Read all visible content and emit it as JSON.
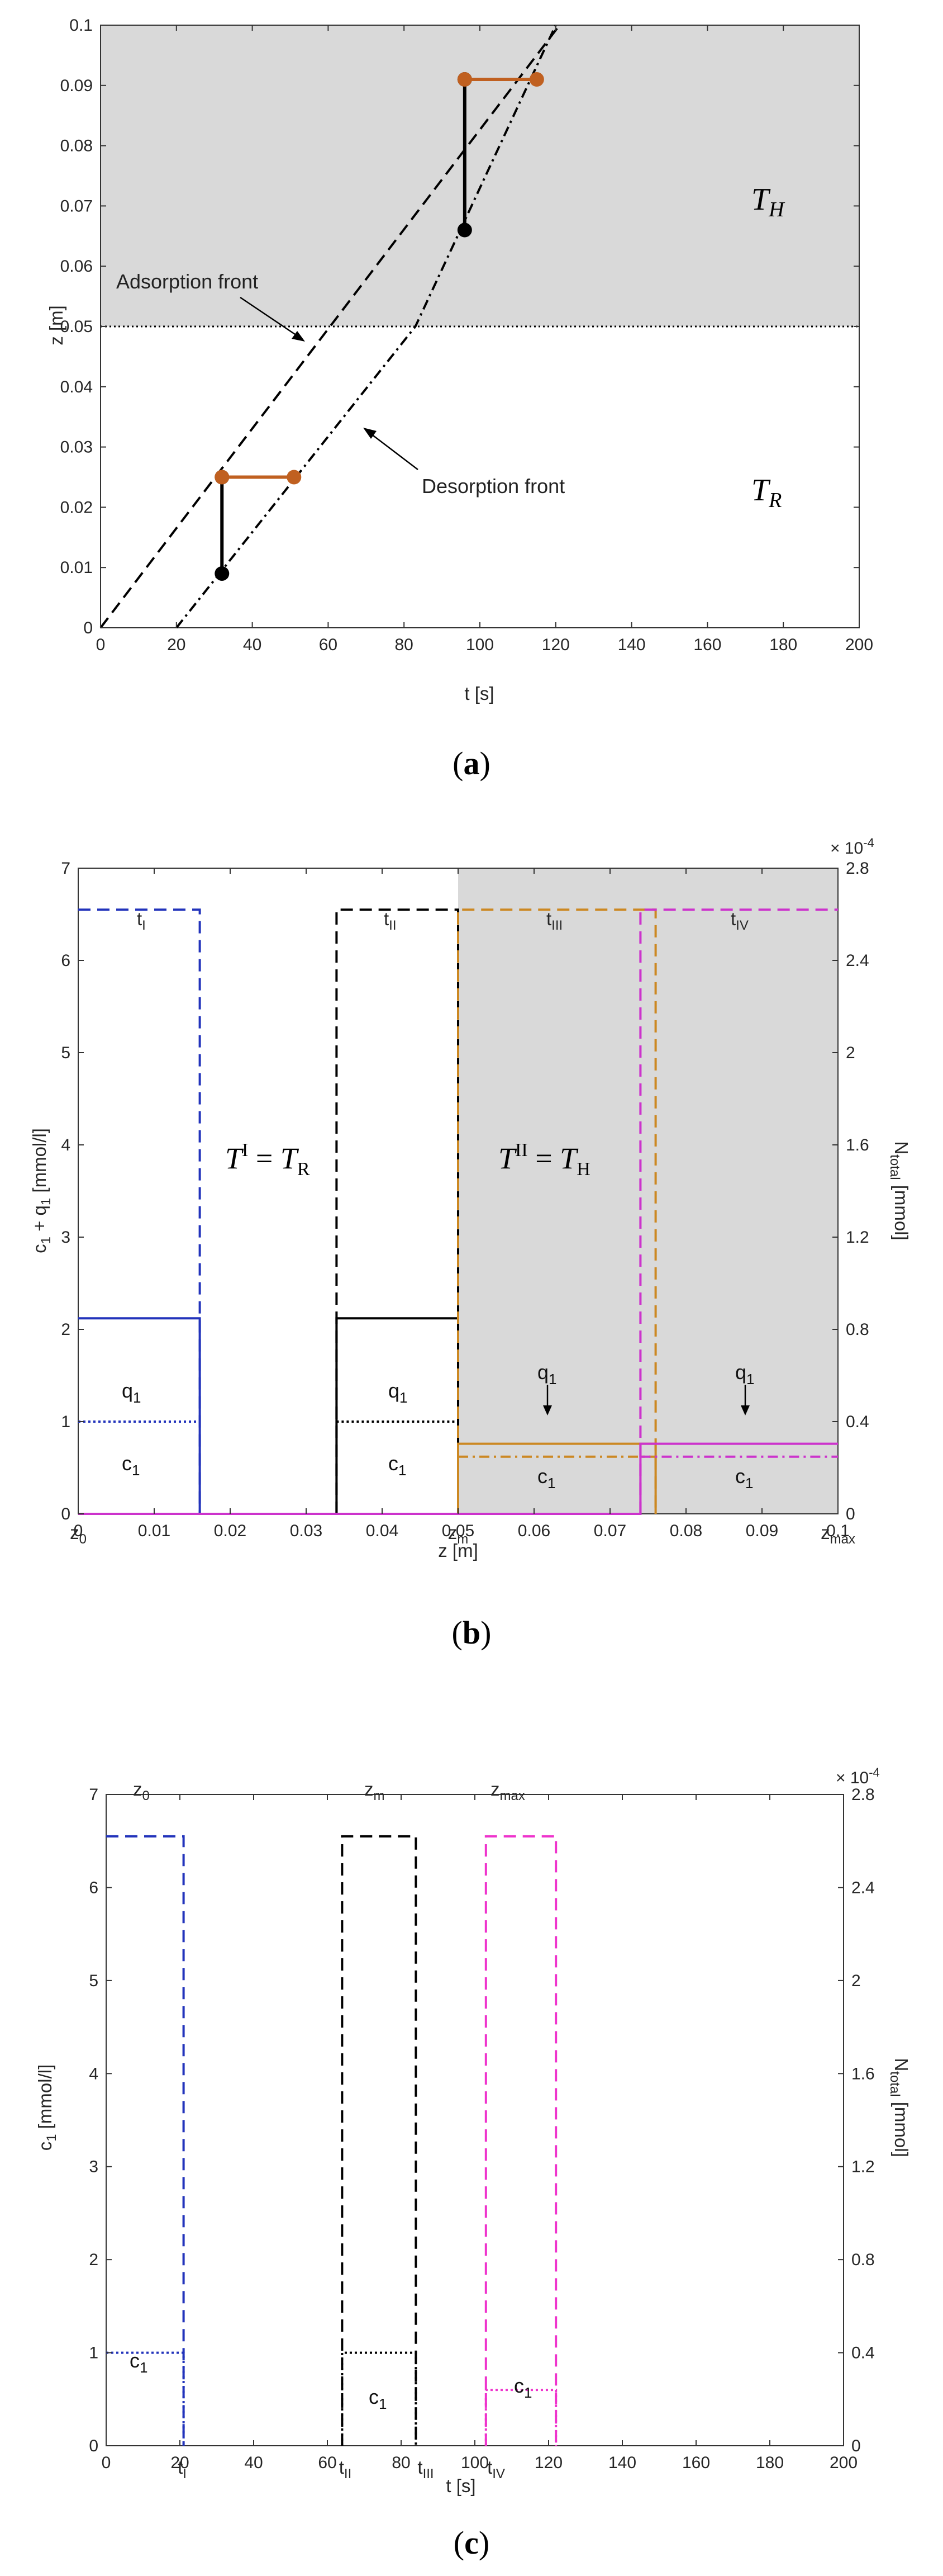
{
  "chart_data": [
    {
      "panel": "a",
      "caption": "(a)",
      "type": "line",
      "xlabel": "t [s]",
      "ylabel": "z [m]",
      "xlim": [
        0,
        200
      ],
      "ylim": [
        0,
        0.1
      ],
      "xticks": [
        "0",
        "20",
        "40",
        "60",
        "80",
        "100",
        "120",
        "140",
        "160",
        "180",
        "200"
      ],
      "yticks": [
        "0",
        "0.01",
        "0.02",
        "0.03",
        "0.04",
        "0.05",
        "0.06",
        "0.07",
        "0.08",
        "0.09",
        "0.1"
      ],
      "region_labels": {
        "top": "T_H",
        "bottom": "T_R"
      },
      "region_boundary_z": 0.05,
      "annotations": {
        "adsorption": "Adsorption front",
        "desorption": "Desorption front"
      },
      "series": [
        {
          "name": "Adsorption front",
          "style": "dashed",
          "x": [
            0,
            121
          ],
          "y": [
            0,
            0.1
          ]
        },
        {
          "name": "Desorption front",
          "style": "dashdot",
          "x": [
            20,
            83,
            120
          ],
          "y": [
            0,
            0.05,
            0.1
          ]
        }
      ],
      "markers": [
        {
          "color": "#000000",
          "x": [
            32,
            32
          ],
          "y": [
            0.009,
            0.025
          ]
        },
        {
          "color": "#c06020",
          "x": [
            32,
            51
          ],
          "y": [
            0.025,
            0.025
          ]
        },
        {
          "color": "#000000",
          "x": [
            96,
            96
          ],
          "y": [
            0.066,
            0.091
          ]
        },
        {
          "color": "#c06020",
          "x": [
            96,
            115
          ],
          "y": [
            0.091,
            0.091
          ]
        }
      ]
    },
    {
      "panel": "b",
      "caption": "(b)",
      "type": "line",
      "xlabel": "z [m]",
      "ylabel": "c_1 + q_1 [mmol/l]",
      "y2label": "N_total [mmol]",
      "y2exp": "× 10^-4",
      "xlim": [
        0,
        0.1
      ],
      "ylim": [
        0,
        7
      ],
      "y2lim": [
        0,
        2.8
      ],
      "xticks": [
        "0",
        "0.01",
        "0.02",
        "0.03",
        "0.04",
        "0.05",
        "0.06",
        "0.07",
        "0.08",
        "0.09",
        "0.1"
      ],
      "yticks": [
        "0",
        "1",
        "2",
        "3",
        "4",
        "5",
        "6",
        "7"
      ],
      "y2ticks": [
        "0",
        "0.4",
        "0.8",
        "1.2",
        "1.6",
        "2",
        "2.4",
        "2.8"
      ],
      "under_x": {
        "z0": "z_0",
        "zm": "z_m",
        "zmax": "z_max"
      },
      "temps": {
        "left": "T^I = T_R",
        "right": "T^II = T_H"
      },
      "time_labels": [
        "t_I",
        "t_II",
        "t_III",
        "t_IV"
      ],
      "curve_labels": {
        "q": "q_1",
        "c": "c_1"
      },
      "series": [
        {
          "name": "t_I N_total",
          "color": "#2233bb",
          "style": "dashed",
          "x": [
            0,
            0.016,
            0.016
          ],
          "y2": [
            2.62,
            2.62,
            0
          ]
        },
        {
          "name": "t_I c1+q1",
          "color": "#2233bb",
          "style": "solid",
          "x": [
            0,
            0.016,
            0.016
          ],
          "y": [
            2.12,
            2.12,
            0
          ]
        },
        {
          "name": "t_I c1",
          "color": "#2233bb",
          "style": "dotted",
          "x": [
            0,
            0.016
          ],
          "y": [
            1,
            1
          ]
        },
        {
          "name": "t_II N_total",
          "color": "#000000",
          "style": "dashed",
          "x": [
            0.034,
            0.034,
            0.05,
            0.05
          ],
          "y2": [
            0,
            2.62,
            2.62,
            0
          ]
        },
        {
          "name": "t_II c1+q1",
          "color": "#000000",
          "style": "solid",
          "x": [
            0.034,
            0.034,
            0.05,
            0.05
          ],
          "y": [
            0,
            2.12,
            2.12,
            0
          ]
        },
        {
          "name": "t_II c1",
          "color": "#000000",
          "style": "dotted",
          "x": [
            0.034,
            0.05
          ],
          "y": [
            1,
            1
          ]
        },
        {
          "name": "t_III N_total",
          "color": "#cc8822",
          "style": "dashed",
          "x": [
            0.05,
            0.05,
            0.076,
            0.076
          ],
          "y2": [
            0,
            2.62,
            2.62,
            0
          ]
        },
        {
          "name": "t_III c1+q1",
          "color": "#cc8822",
          "style": "solid",
          "x": [
            0.05,
            0.05,
            0.076,
            0.076
          ],
          "y": [
            0,
            0.76,
            0.76,
            0
          ]
        },
        {
          "name": "t_III c1",
          "color": "#cc8822",
          "style": "dashdot",
          "x": [
            0.05,
            0.076
          ],
          "y": [
            0.62,
            0.62
          ]
        },
        {
          "name": "t_IV N_total",
          "color": "#cc33cc",
          "style": "dashed",
          "x": [
            0.074,
            0.074,
            0.1
          ],
          "y2": [
            0,
            2.62,
            2.62
          ]
        },
        {
          "name": "t_IV c1+q1",
          "color": "#cc33cc",
          "style": "solid",
          "x": [
            0,
            0.074,
            0.074,
            0.1
          ],
          "y": [
            0,
            0,
            0.76,
            0.76
          ]
        },
        {
          "name": "t_IV c1",
          "color": "#cc33cc",
          "style": "dashdot",
          "x": [
            0.074,
            0.1
          ],
          "y": [
            0.62,
            0.62
          ]
        }
      ]
    },
    {
      "panel": "c",
      "caption": "(c)",
      "type": "line",
      "xlabel": "t [s]",
      "ylabel": "c_1 [mmol/l]",
      "y2label": "N_total [mmol]",
      "y2exp": "× 10^-4",
      "xlim": [
        0,
        200
      ],
      "ylim": [
        0,
        7
      ],
      "y2lim": [
        0,
        2.8
      ],
      "xticks": [
        "0",
        "20",
        "40",
        "60",
        "80",
        "100",
        "120",
        "140",
        "160",
        "180",
        "200"
      ],
      "yticks": [
        "0",
        "1",
        "2",
        "3",
        "4",
        "5",
        "6",
        "7"
      ],
      "y2ticks": [
        "0",
        "0.4",
        "0.8",
        "1.2",
        "1.6",
        "2",
        "2.4",
        "2.8"
      ],
      "under_x": [
        "t_I",
        "t_II",
        "t_III",
        "t_IV"
      ],
      "top_labels": [
        "z_0",
        "z_m",
        "z_max"
      ],
      "curve_label": "c_1",
      "series": [
        {
          "name": "z0 N_total",
          "color": "#2233bb",
          "style": "dashed",
          "x": [
            0,
            21,
            21
          ],
          "y2": [
            2.62,
            2.62,
            0
          ]
        },
        {
          "name": "z0 c1",
          "color": "#2233bb",
          "style": "dotted",
          "x": [
            0,
            21,
            21
          ],
          "y": [
            1,
            1,
            0
          ]
        },
        {
          "name": "zm N_total",
          "color": "#000000",
          "style": "dashed",
          "x": [
            64,
            64,
            84,
            84
          ],
          "y2": [
            0,
            2.62,
            2.62,
            0
          ]
        },
        {
          "name": "zm c1",
          "color": "#000000",
          "style": "dotted",
          "x": [
            64,
            64,
            84,
            84
          ],
          "y": [
            0,
            1,
            1,
            0
          ]
        },
        {
          "name": "zmax N_total",
          "color": "#ee33cc",
          "style": "dashed",
          "x": [
            103,
            103,
            122,
            122
          ],
          "y2": [
            0,
            2.62,
            2.62,
            0
          ]
        },
        {
          "name": "zmax c1",
          "color": "#ee33cc",
          "style": "dotted",
          "x": [
            103,
            103,
            122,
            122
          ],
          "y": [
            0,
            0.6,
            0.6,
            0
          ]
        }
      ]
    }
  ]
}
